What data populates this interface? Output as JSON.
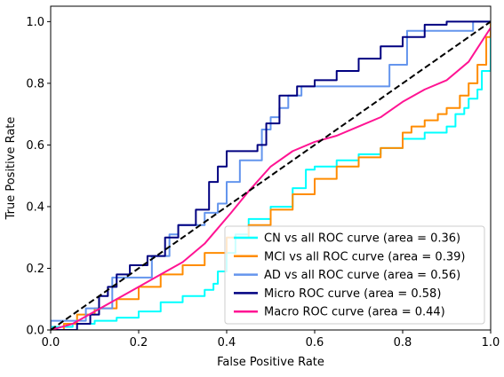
{
  "chart_data": {
    "type": "line",
    "title": "",
    "xlabel": "False Positive Rate",
    "ylabel": "True Positive Rate",
    "xlim": [
      0.0,
      1.0
    ],
    "ylim": [
      0.0,
      1.05
    ],
    "xticks": [
      0.0,
      0.2,
      0.4,
      0.6,
      0.8,
      1.0
    ],
    "yticks": [
      0.0,
      0.2,
      0.4,
      0.6,
      0.8,
      1.0
    ],
    "xtick_labels": [
      "0.0",
      "0.2",
      "0.4",
      "0.6",
      "0.8",
      "1.0"
    ],
    "ytick_labels": [
      "0.0",
      "0.2",
      "0.4",
      "0.6",
      "0.8",
      "1.0"
    ],
    "grid": false,
    "legend_position": "bottom-right",
    "series": [
      {
        "name": "CN vs all ROC curve (area = 0.36)",
        "color": "#00ffff",
        "step": true,
        "x": [
          0.0,
          0.0,
          0.05,
          0.1,
          0.15,
          0.2,
          0.25,
          0.3,
          0.35,
          0.37,
          0.38,
          0.4,
          0.42,
          0.45,
          0.5,
          0.55,
          0.58,
          0.6,
          0.65,
          0.7,
          0.75,
          0.8,
          0.85,
          0.9,
          0.92,
          0.94,
          0.95,
          0.97,
          0.98,
          1.0
        ],
        "y": [
          0.0,
          0.01,
          0.02,
          0.03,
          0.04,
          0.06,
          0.09,
          0.11,
          0.13,
          0.15,
          0.19,
          0.25,
          0.31,
          0.36,
          0.4,
          0.46,
          0.52,
          0.53,
          0.55,
          0.57,
          0.59,
          0.62,
          0.64,
          0.66,
          0.7,
          0.72,
          0.75,
          0.78,
          0.84,
          0.98
        ]
      },
      {
        "name": "MCI vs all ROC curve (area = 0.39)",
        "color": "#ff8c00",
        "step": true,
        "x": [
          0.0,
          0.03,
          0.06,
          0.1,
          0.15,
          0.2,
          0.25,
          0.3,
          0.35,
          0.4,
          0.45,
          0.5,
          0.55,
          0.6,
          0.65,
          0.7,
          0.75,
          0.8,
          0.82,
          0.85,
          0.88,
          0.9,
          0.93,
          0.95,
          0.97,
          0.99,
          1.0
        ],
        "y": [
          0.0,
          0.02,
          0.05,
          0.07,
          0.1,
          0.14,
          0.18,
          0.21,
          0.25,
          0.3,
          0.34,
          0.39,
          0.44,
          0.49,
          0.53,
          0.56,
          0.59,
          0.64,
          0.66,
          0.68,
          0.7,
          0.72,
          0.76,
          0.8,
          0.86,
          0.95,
          1.0
        ]
      },
      {
        "name": "AD vs all ROC curve (area = 0.56)",
        "color": "#6495ed",
        "step": true,
        "x": [
          0.0,
          0.0,
          0.08,
          0.08,
          0.14,
          0.14,
          0.23,
          0.23,
          0.27,
          0.27,
          0.29,
          0.29,
          0.35,
          0.35,
          0.38,
          0.38,
          0.4,
          0.4,
          0.43,
          0.43,
          0.48,
          0.48,
          0.5,
          0.5,
          0.52,
          0.52,
          0.54,
          0.54,
          0.57,
          0.57,
          0.77,
          0.77,
          0.81,
          0.81,
          0.96,
          0.96,
          1.0
        ],
        "y": [
          0.0,
          0.03,
          0.03,
          0.07,
          0.07,
          0.17,
          0.17,
          0.24,
          0.24,
          0.31,
          0.31,
          0.34,
          0.34,
          0.38,
          0.38,
          0.41,
          0.41,
          0.48,
          0.48,
          0.55,
          0.55,
          0.65,
          0.65,
          0.69,
          0.69,
          0.72,
          0.72,
          0.76,
          0.76,
          0.79,
          0.79,
          0.86,
          0.86,
          0.97,
          0.97,
          1.0,
          1.0
        ]
      },
      {
        "name": "Micro ROC curve (area = 0.58)",
        "color": "#000080",
        "step": true,
        "x": [
          0.0,
          0.03,
          0.06,
          0.09,
          0.11,
          0.13,
          0.15,
          0.18,
          0.22,
          0.26,
          0.29,
          0.33,
          0.36,
          0.38,
          0.4,
          0.42,
          0.47,
          0.49,
          0.52,
          0.56,
          0.6,
          0.65,
          0.7,
          0.75,
          0.8,
          0.85,
          0.9,
          0.95,
          1.0
        ],
        "y": [
          0.0,
          0.0,
          0.02,
          0.05,
          0.11,
          0.14,
          0.18,
          0.21,
          0.24,
          0.3,
          0.34,
          0.39,
          0.48,
          0.53,
          0.58,
          0.58,
          0.6,
          0.67,
          0.76,
          0.79,
          0.81,
          0.84,
          0.88,
          0.92,
          0.95,
          0.99,
          1.0,
          1.0,
          1.0
        ]
      },
      {
        "name": "Macro ROC curve (area = 0.44)",
        "color": "#ff1493",
        "step": false,
        "x": [
          0.0,
          0.05,
          0.1,
          0.15,
          0.2,
          0.25,
          0.3,
          0.35,
          0.38,
          0.41,
          0.45,
          0.5,
          0.55,
          0.6,
          0.65,
          0.7,
          0.75,
          0.8,
          0.85,
          0.9,
          0.95,
          1.0
        ],
        "y": [
          0.0,
          0.02,
          0.06,
          0.1,
          0.14,
          0.18,
          0.22,
          0.28,
          0.33,
          0.38,
          0.45,
          0.53,
          0.58,
          0.61,
          0.63,
          0.66,
          0.69,
          0.74,
          0.78,
          0.81,
          0.87,
          0.98
        ]
      }
    ],
    "chance_line": {
      "color": "#000000",
      "style": "dashed",
      "x": [
        0.0,
        1.0
      ],
      "y": [
        0.0,
        1.0
      ]
    }
  }
}
